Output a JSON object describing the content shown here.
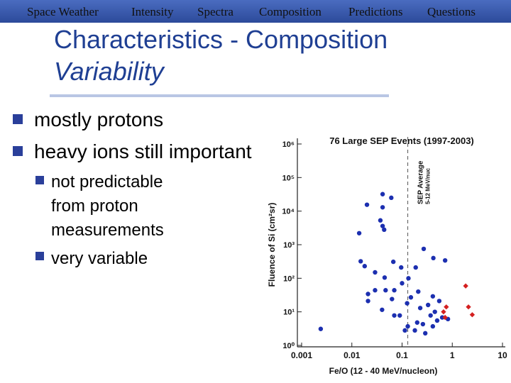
{
  "nav": [
    "Space Weather",
    "Intensity",
    "Spectra",
    "Composition",
    "Predictions",
    "Questions"
  ],
  "title": "Characteristics - Composition",
  "subtitle": "Variability",
  "bullets": [
    {
      "text": "mostly protons"
    },
    {
      "text": "heavy ions still important",
      "children": [
        {
          "lines": [
            "not predictable",
            "from proton",
            "measurements"
          ]
        },
        {
          "lines": [
            "very variable"
          ]
        }
      ]
    }
  ],
  "chart_data": {
    "type": "scatter",
    "title": "76 Large SEP Events (1997-2003)",
    "xlabel": "Fe/O (12 - 40 MeV/nucleon)",
    "ylabel": "Fluence of Si (cm²sr)",
    "xlog": true,
    "ylog": true,
    "xlim": [
      0.001,
      10
    ],
    "ylim": [
      1,
      1000000
    ],
    "xticks": [
      0.001,
      0.01,
      0.1,
      1,
      10
    ],
    "yticks": [
      {
        "value": 1,
        "label": "10⁰"
      },
      {
        "value": 10,
        "label": "10¹"
      },
      {
        "value": 100,
        "label": "10²"
      },
      {
        "value": 1000,
        "label": "10³"
      },
      {
        "value": 10000,
        "label": "10⁴"
      },
      {
        "value": 100000,
        "label": "10⁵"
      },
      {
        "value": 1000000,
        "label": "10⁶"
      }
    ],
    "reference_line": {
      "x": 0.13,
      "label": "SEP Average",
      "sublabel": "5-12 MeV/nuc"
    },
    "series": [
      {
        "color": "#1c2fb0",
        "x": [
          0.0024,
          0.014,
          0.041,
          0.061,
          0.041,
          0.02,
          0.037,
          0.041,
          0.044,
          0.015,
          0.018,
          0.029,
          0.045,
          0.067,
          0.096,
          0.134,
          0.187,
          0.27,
          0.42,
          0.72,
          0.1,
          0.07,
          0.047,
          0.029,
          0.21,
          0.15,
          0.063,
          0.021,
          0.021,
          0.41,
          0.55,
          0.33,
          0.23,
          0.126,
          0.04,
          0.07,
          0.09,
          0.13,
          0.2,
          0.26,
          0.37,
          0.45,
          0.5,
          0.63,
          0.41,
          0.114,
          0.18,
          0.82,
          0.29
        ],
        "values": [
          3.1,
          2200,
          32000,
          25000,
          13000,
          15500,
          5300,
          3600,
          2800,
          320,
          230,
          150,
          105,
          310,
          210,
          100,
          210,
          750,
          400,
          340,
          71,
          44,
          44,
          44,
          40,
          27,
          24,
          21,
          34,
          29,
          21,
          16,
          13,
          18,
          11.5,
          7.8,
          7.8,
          3.7,
          4.8,
          4.3,
          7.8,
          10,
          5.5,
          6.8,
          3.7,
          2.8,
          2.8,
          6.1,
          2.3
        ]
      },
      {
        "color": "#d42020",
        "x": [
          0.76,
          0.72,
          1.85,
          2.1,
          2.5,
          0.67
        ],
        "values": [
          14,
          6.8,
          59,
          14,
          8.2,
          10
        ]
      }
    ]
  }
}
